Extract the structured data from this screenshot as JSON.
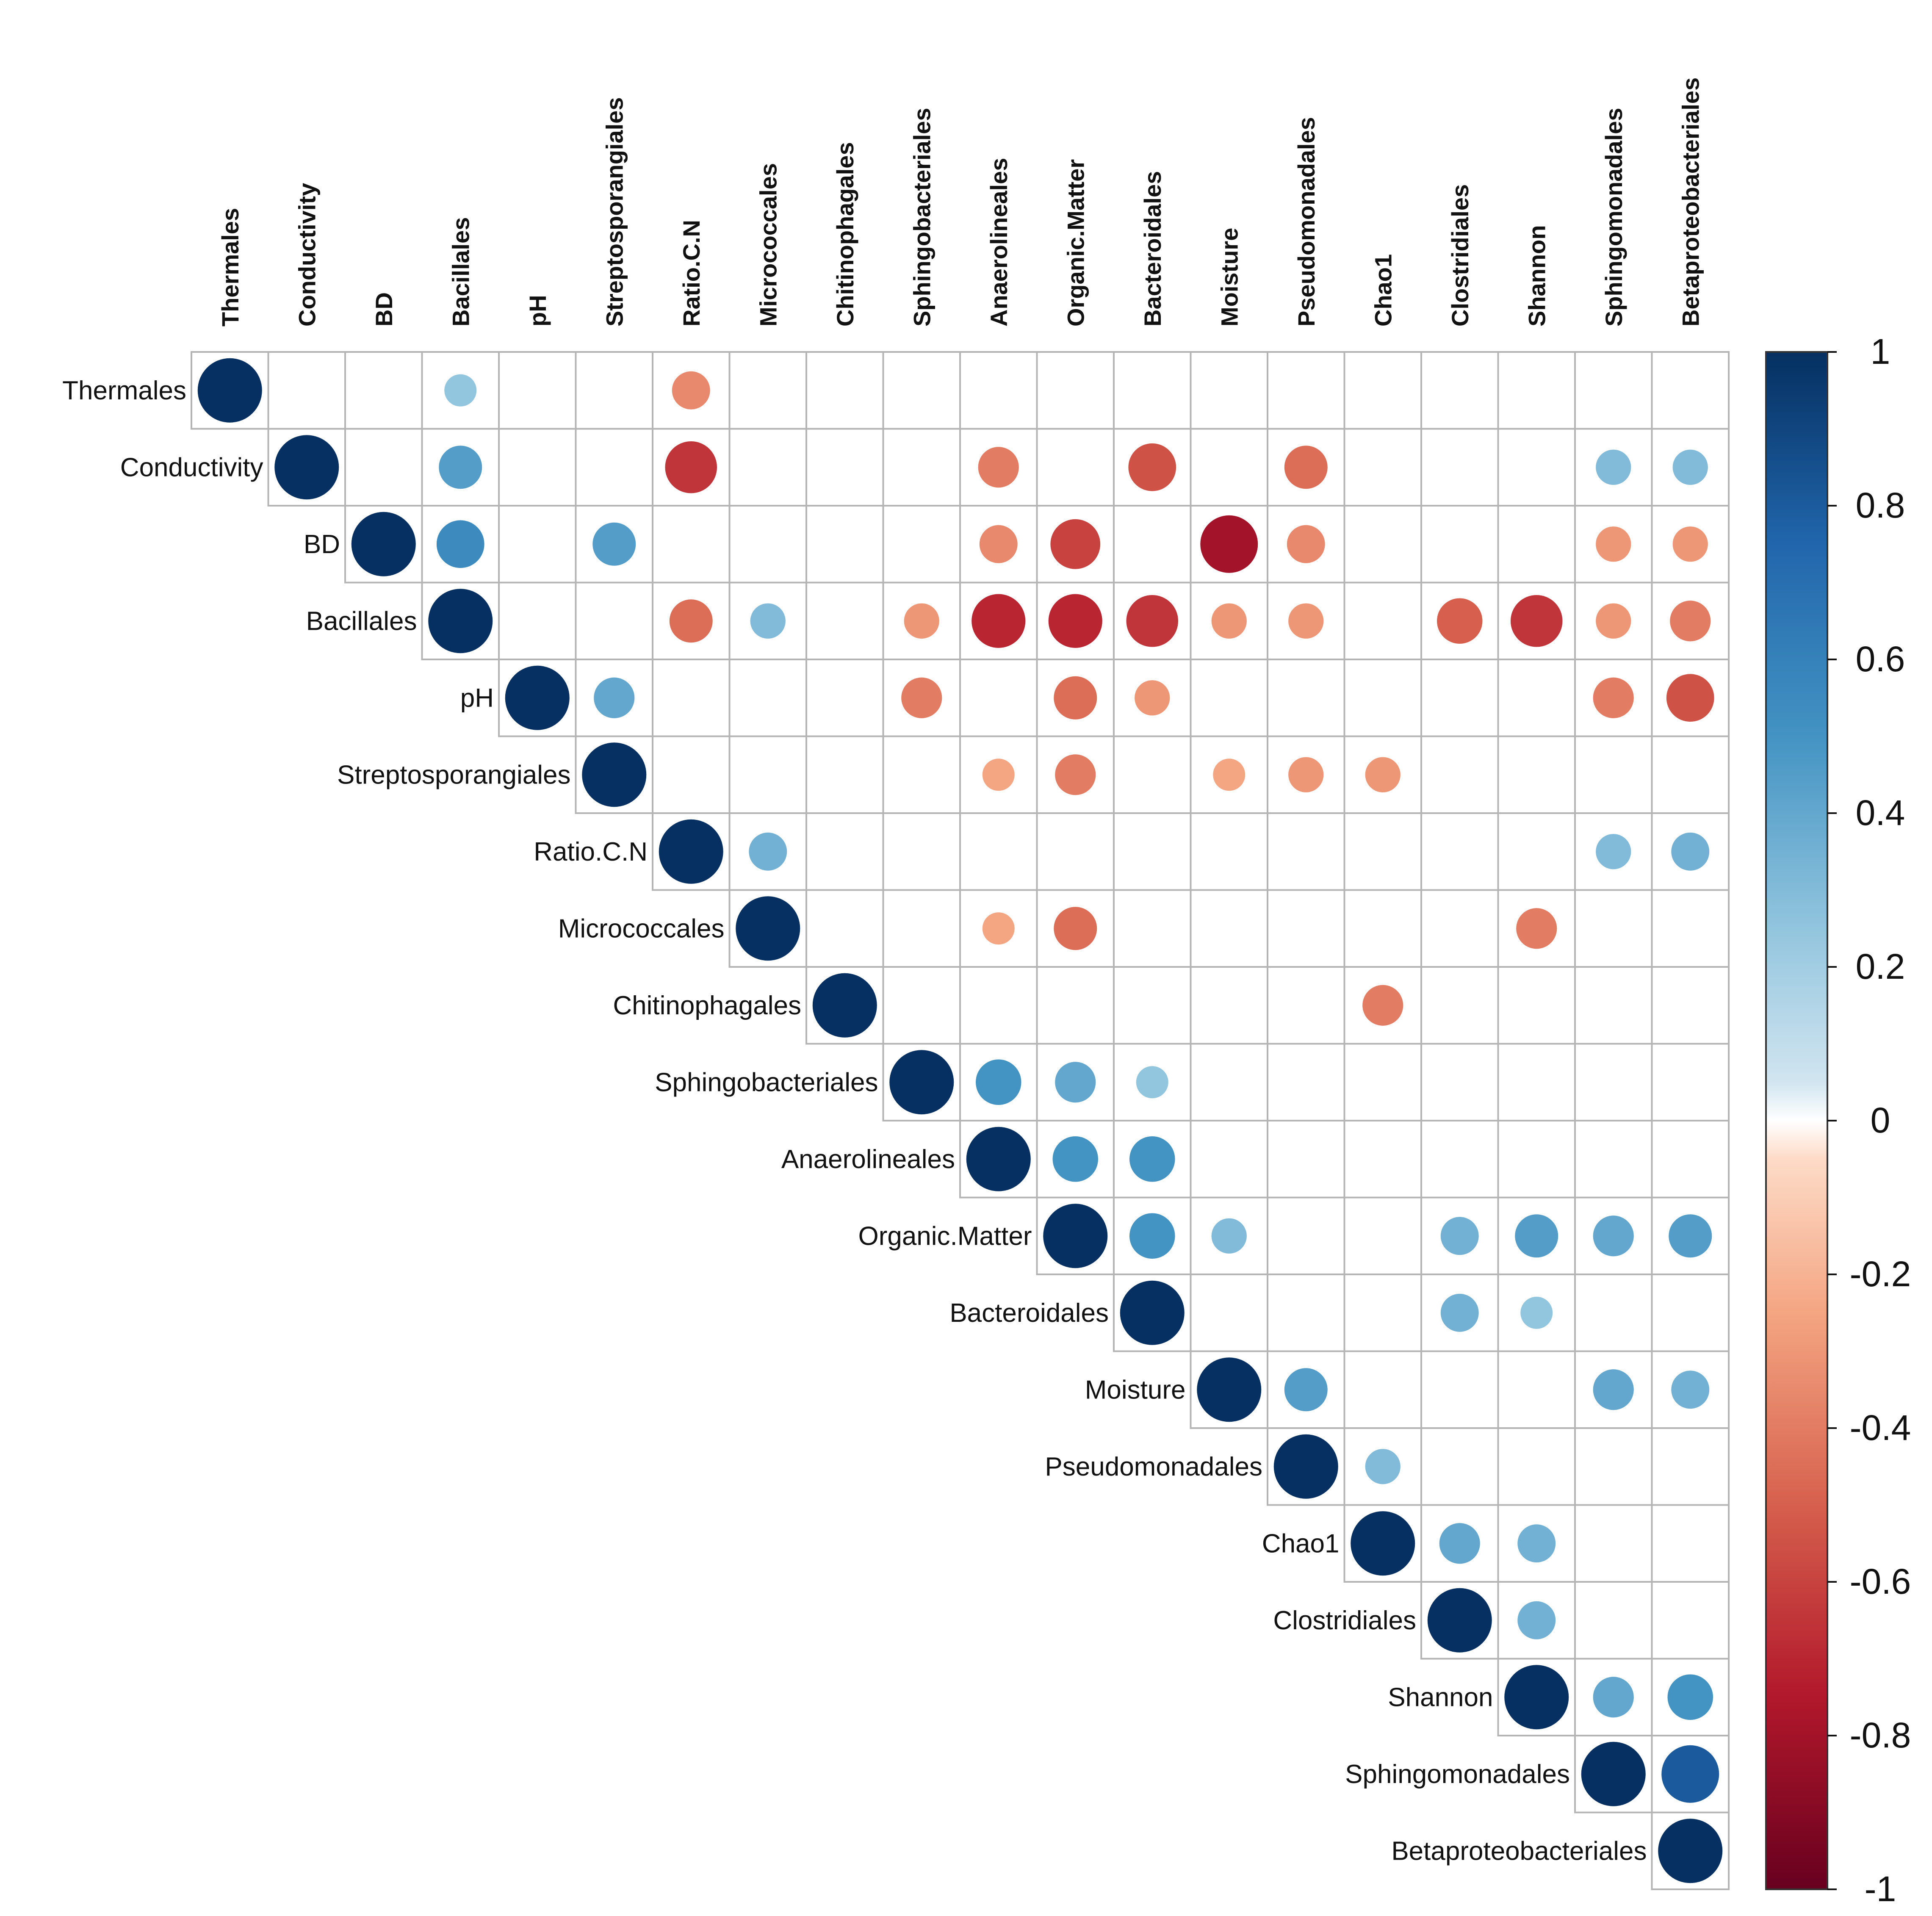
{
  "chart_data": {
    "type": "heatmap",
    "style": "correlation circles, upper triangle",
    "title": "",
    "variables": [
      "Thermales",
      "Conductivity",
      "BD",
      "Bacillales",
      "pH",
      "Streptosporangiales",
      "Ratio.C.N",
      "Micrococcales",
      "Chitinophagales",
      "Sphingobacteriales",
      "Anaerolineales",
      "Organic.Matter",
      "Bacteroidales",
      "Moisture",
      "Pseudomonadales",
      "Chao1",
      "Clostridiales",
      "Shannon",
      "Sphingomonadales",
      "Betaproteobacteriales"
    ],
    "correlations": [
      {
        "row": "Thermales",
        "col": "Bacillales",
        "value": 0.25
      },
      {
        "row": "Thermales",
        "col": "Ratio.C.N",
        "value": -0.35
      },
      {
        "row": "Conductivity",
        "col": "Bacillales",
        "value": 0.45
      },
      {
        "row": "Conductivity",
        "col": "Ratio.C.N",
        "value": -0.65
      },
      {
        "row": "Conductivity",
        "col": "Anaerolineales",
        "value": -0.4
      },
      {
        "row": "Conductivity",
        "col": "Bacteroidales",
        "value": -0.55
      },
      {
        "row": "Conductivity",
        "col": "Pseudomonadales",
        "value": -0.45
      },
      {
        "row": "Conductivity",
        "col": "Sphingomonadales",
        "value": 0.3
      },
      {
        "row": "Conductivity",
        "col": "Betaproteobacteriales",
        "value": 0.3
      },
      {
        "row": "BD",
        "col": "Bacillales",
        "value": 0.55
      },
      {
        "row": "BD",
        "col": "Streptosporangiales",
        "value": 0.45
      },
      {
        "row": "BD",
        "col": "Anaerolineales",
        "value": -0.35
      },
      {
        "row": "BD",
        "col": "Organic.Matter",
        "value": -0.6
      },
      {
        "row": "BD",
        "col": "Moisture",
        "value": -0.8
      },
      {
        "row": "BD",
        "col": "Pseudomonadales",
        "value": -0.35
      },
      {
        "row": "BD",
        "col": "Sphingomonadales",
        "value": -0.3
      },
      {
        "row": "BD",
        "col": "Betaproteobacteriales",
        "value": -0.3
      },
      {
        "row": "Bacillales",
        "col": "Ratio.C.N",
        "value": -0.45
      },
      {
        "row": "Bacillales",
        "col": "Micrococcales",
        "value": 0.3
      },
      {
        "row": "Bacillales",
        "col": "Sphingobacteriales",
        "value": -0.3
      },
      {
        "row": "Bacillales",
        "col": "Anaerolineales",
        "value": -0.7
      },
      {
        "row": "Bacillales",
        "col": "Organic.Matter",
        "value": -0.7
      },
      {
        "row": "Bacillales",
        "col": "Bacteroidales",
        "value": -0.65
      },
      {
        "row": "Bacillales",
        "col": "Moisture",
        "value": -0.3
      },
      {
        "row": "Bacillales",
        "col": "Pseudomonadales",
        "value": -0.3
      },
      {
        "row": "Bacillales",
        "col": "Clostridiales",
        "value": -0.5
      },
      {
        "row": "Bacillales",
        "col": "Shannon",
        "value": -0.65
      },
      {
        "row": "Bacillales",
        "col": "Sphingomonadales",
        "value": -0.3
      },
      {
        "row": "Bacillales",
        "col": "Betaproteobacteriales",
        "value": -0.4
      },
      {
        "row": "pH",
        "col": "Streptosporangiales",
        "value": 0.4
      },
      {
        "row": "pH",
        "col": "Sphingobacteriales",
        "value": -0.4
      },
      {
        "row": "pH",
        "col": "Organic.Matter",
        "value": -0.45
      },
      {
        "row": "pH",
        "col": "Bacteroidales",
        "value": -0.3
      },
      {
        "row": "pH",
        "col": "Sphingomonadales",
        "value": -0.4
      },
      {
        "row": "pH",
        "col": "Betaproteobacteriales",
        "value": -0.55
      },
      {
        "row": "Streptosporangiales",
        "col": "Anaerolineales",
        "value": -0.25
      },
      {
        "row": "Streptosporangiales",
        "col": "Organic.Matter",
        "value": -0.4
      },
      {
        "row": "Streptosporangiales",
        "col": "Moisture",
        "value": -0.25
      },
      {
        "row": "Streptosporangiales",
        "col": "Pseudomonadales",
        "value": -0.3
      },
      {
        "row": "Streptosporangiales",
        "col": "Chao1",
        "value": -0.3
      },
      {
        "row": "Ratio.C.N",
        "col": "Micrococcales",
        "value": 0.35
      },
      {
        "row": "Ratio.C.N",
        "col": "Sphingomonadales",
        "value": 0.3
      },
      {
        "row": "Ratio.C.N",
        "col": "Betaproteobacteriales",
        "value": 0.35
      },
      {
        "row": "Micrococcales",
        "col": "Anaerolineales",
        "value": -0.25
      },
      {
        "row": "Micrococcales",
        "col": "Organic.Matter",
        "value": -0.45
      },
      {
        "row": "Micrococcales",
        "col": "Shannon",
        "value": -0.4
      },
      {
        "row": "Chitinophagales",
        "col": "Chao1",
        "value": -0.4
      },
      {
        "row": "Sphingobacteriales",
        "col": "Anaerolineales",
        "value": 0.5
      },
      {
        "row": "Sphingobacteriales",
        "col": "Organic.Matter",
        "value": 0.4
      },
      {
        "row": "Sphingobacteriales",
        "col": "Bacteroidales",
        "value": 0.25
      },
      {
        "row": "Anaerolineales",
        "col": "Organic.Matter",
        "value": 0.5
      },
      {
        "row": "Anaerolineales",
        "col": "Bacteroidales",
        "value": 0.5
      },
      {
        "row": "Organic.Matter",
        "col": "Bacteroidales",
        "value": 0.5
      },
      {
        "row": "Organic.Matter",
        "col": "Moisture",
        "value": 0.3
      },
      {
        "row": "Organic.Matter",
        "col": "Clostridiales",
        "value": 0.35
      },
      {
        "row": "Organic.Matter",
        "col": "Shannon",
        "value": 0.45
      },
      {
        "row": "Organic.Matter",
        "col": "Sphingomonadales",
        "value": 0.4
      },
      {
        "row": "Organic.Matter",
        "col": "Betaproteobacteriales",
        "value": 0.45
      },
      {
        "row": "Bacteroidales",
        "col": "Clostridiales",
        "value": 0.35
      },
      {
        "row": "Bacteroidales",
        "col": "Shannon",
        "value": 0.25
      },
      {
        "row": "Moisture",
        "col": "Pseudomonadales",
        "value": 0.45
      },
      {
        "row": "Moisture",
        "col": "Sphingomonadales",
        "value": 0.4
      },
      {
        "row": "Moisture",
        "col": "Betaproteobacteriales",
        "value": 0.35
      },
      {
        "row": "Pseudomonadales",
        "col": "Chao1",
        "value": 0.3
      },
      {
        "row": "Chao1",
        "col": "Clostridiales",
        "value": 0.4
      },
      {
        "row": "Chao1",
        "col": "Shannon",
        "value": 0.35
      },
      {
        "row": "Clostridiales",
        "col": "Shannon",
        "value": 0.35
      },
      {
        "row": "Shannon",
        "col": "Sphingomonadales",
        "value": 0.4
      },
      {
        "row": "Shannon",
        "col": "Betaproteobacteriales",
        "value": 0.5
      },
      {
        "row": "Sphingomonadales",
        "col": "Betaproteobacteriales",
        "value": 0.8
      }
    ],
    "diagonal_value": 1,
    "color_scale": {
      "min": -1,
      "max": 1,
      "ticks": [
        "1",
        "0.8",
        "0.6",
        "0.4",
        "0.2",
        "0",
        "-0.2",
        "-0.4",
        "-0.6",
        "-0.8",
        "-1"
      ],
      "tick_values": [
        1,
        0.8,
        0.6,
        0.4,
        0.2,
        0,
        -0.2,
        -0.4,
        -0.6,
        -0.8,
        -1
      ],
      "stops": [
        {
          "value": -1,
          "color": "#67001f"
        },
        {
          "value": -0.75,
          "color": "#b2182b"
        },
        {
          "value": -0.5,
          "color": "#d6604d"
        },
        {
          "value": -0.25,
          "color": "#f4a582"
        },
        {
          "value": -0.05,
          "color": "#fddbc7"
        },
        {
          "value": 0,
          "color": "#ffffff"
        },
        {
          "value": 0.05,
          "color": "#d1e5f0"
        },
        {
          "value": 0.25,
          "color": "#92c5de"
        },
        {
          "value": 0.5,
          "color": "#4393c3"
        },
        {
          "value": 0.75,
          "color": "#2166ac"
        },
        {
          "value": 1,
          "color": "#053061"
        }
      ]
    },
    "legend_position": "right",
    "grid": true
  }
}
